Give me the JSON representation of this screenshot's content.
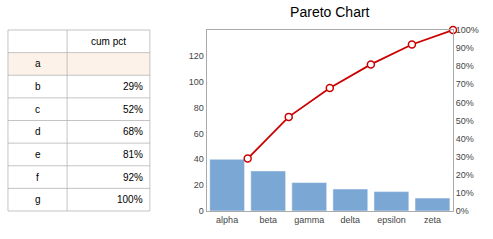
{
  "chart_data": [
    {
      "type": "table",
      "header": "cum pct",
      "categories": [
        "a",
        "b",
        "c",
        "d",
        "e",
        "f",
        "g"
      ],
      "values": [
        null,
        29,
        52,
        68,
        81,
        92,
        100
      ],
      "value_labels": [
        null,
        "29%",
        "52%",
        "68%",
        "81%",
        "92%",
        "100%"
      ],
      "colors": [
        "#fdf2e9",
        "#ffffff",
        "#ffffff",
        "#ffffff",
        "#ffffff",
        "#ffffff",
        "#ffffff"
      ]
    },
    {
      "type": "bar",
      "title": "Pareto Chart",
      "categories": [
        "alpha",
        "beta",
        "gamma",
        "delta",
        "epsilon",
        "zeta"
      ],
      "series": [
        {
          "type": "bar",
          "color": "#7ba7d4",
          "values": [
            40,
            31,
            22,
            17,
            15,
            10
          ]
        },
        {
          "type": "line",
          "axis": "y2",
          "color": "#cc0000",
          "marker": "circle",
          "values": [
            0.29,
            0.52,
            0.68,
            0.81,
            0.92,
            1.0
          ]
        }
      ],
      "ylim": [
        0,
        140
      ],
      "yticks": [
        0,
        20,
        40,
        60,
        80,
        100,
        120
      ],
      "y2lim": [
        0,
        1.0
      ],
      "y2ticks": [
        {
          "value": 0.0,
          "label": "0%"
        },
        {
          "value": 0.1,
          "label": "10%"
        },
        {
          "value": 0.2,
          "label": "20%"
        },
        {
          "value": 0.3,
          "label": "30%"
        },
        {
          "value": 0.4,
          "label": "40%"
        },
        {
          "value": 0.5,
          "label": "50%"
        },
        {
          "value": 0.6,
          "label": "60%"
        },
        {
          "value": 0.7,
          "label": "70%"
        },
        {
          "value": 0.8,
          "label": "80%"
        },
        {
          "value": 0.9,
          "label": "90%"
        },
        {
          "value": 1.0,
          "label": "100%"
        }
      ],
      "grid": false
    }
  ]
}
